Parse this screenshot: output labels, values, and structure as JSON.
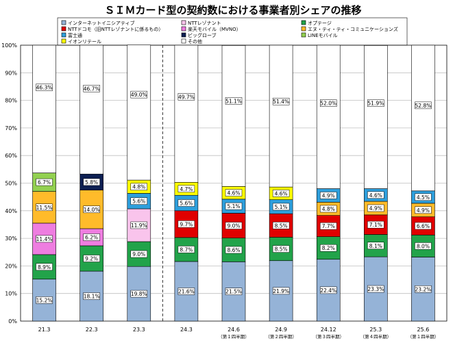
{
  "chart_data": {
    "type": "bar",
    "stacked": true,
    "title": "ＳＩＭカード型の契約数における事業者別シェアの推移",
    "xlabel": "",
    "ylabel": "",
    "ylim": [
      0,
      100
    ],
    "y_ticks": [
      "0%",
      "10%",
      "20%",
      "30%",
      "40%",
      "50%",
      "60%",
      "70%",
      "80%",
      "90%",
      "100%"
    ],
    "grid": true,
    "legend_position": "top",
    "categories": [
      {
        "label": "21.3",
        "sub": ""
      },
      {
        "label": "22.3",
        "sub": ""
      },
      {
        "label": "23.3",
        "sub": ""
      },
      {
        "label": "24.3",
        "sub": ""
      },
      {
        "label": "24.6",
        "sub": "（第１四半期）"
      },
      {
        "label": "24.9",
        "sub": "（第２四半期）"
      },
      {
        "label": "24.12",
        "sub": "（第３四半期）"
      },
      {
        "label": "25.3",
        "sub": "（第４四半期）"
      },
      {
        "label": "25.6",
        "sub": "（第１四半期）"
      }
    ],
    "series": [
      {
        "name": "インターネットイニシアティブ",
        "color": "#95b3d7",
        "values": [
          15.2,
          18.1,
          19.8,
          21.6,
          21.5,
          21.9,
          22.4,
          23.3,
          23.2
        ],
        "labels": [
          "15.2%",
          "18.1%",
          "19.8%",
          "21.6%",
          "21.5%",
          "21.9%",
          "22.4%",
          "23.3%",
          "23.2%"
        ]
      },
      {
        "name": "オプテージ",
        "color": "#22a34a",
        "values": [
          8.9,
          9.2,
          9.0,
          8.7,
          8.6,
          8.5,
          8.2,
          8.1,
          8.0
        ],
        "labels": [
          "8.9%",
          "9.2%",
          "9.0%",
          "8.7%",
          "8.6%",
          "8.5%",
          "8.2%",
          "8.1%",
          "8.0%"
        ]
      },
      {
        "name": "NTTレゾナント",
        "color": "#f9c4ec",
        "values": [
          0,
          0,
          11.9,
          0,
          0,
          0,
          0,
          0,
          0
        ],
        "labels": [
          "",
          "",
          "11.9%",
          "",
          "",
          "",
          "",
          "",
          ""
        ]
      },
      {
        "name": "楽天モバイル（MVNO）",
        "color": "#ee7de0",
        "values": [
          11.4,
          6.2,
          0,
          0,
          0,
          0,
          0,
          0,
          0
        ],
        "labels": [
          "11.4%",
          "6.2%",
          "",
          "",
          "",
          "",
          "",
          "",
          ""
        ]
      },
      {
        "name": "NTTドコモ（旧NTTレゾナントに係るもの）",
        "color": "#e00000",
        "values": [
          0,
          0,
          0,
          9.7,
          9.0,
          8.5,
          7.7,
          7.1,
          6.6
        ],
        "labels": [
          "",
          "",
          "",
          "9.7%",
          "9.0%",
          "8.5%",
          "7.7%",
          "7.1%",
          "6.6%"
        ]
      },
      {
        "name": "エヌ・ティ・ティ・コミュニケーションズ",
        "color": "#ffbb2a",
        "values": [
          11.5,
          14.0,
          0,
          0,
          0,
          0,
          4.8,
          4.9,
          4.9
        ],
        "labels": [
          "11.5%",
          "14.0%",
          "",
          "",
          "",
          "",
          "4.8%",
          "4.9%",
          "4.9%"
        ]
      },
      {
        "name": "富士通",
        "color": "#2e9fdc",
        "values": [
          0,
          0,
          5.6,
          5.6,
          5.1,
          5.1,
          4.9,
          4.6,
          4.5
        ],
        "labels": [
          "",
          "",
          "5.6%",
          "5.6%",
          "5.1%",
          "5.1%",
          "4.9%",
          "4.6%",
          "4.5%"
        ]
      },
      {
        "name": "ビッグローブ",
        "color": "#0c1f52",
        "values": [
          0,
          5.8,
          0,
          0,
          0,
          0,
          0,
          0,
          0
        ],
        "labels": [
          "",
          "5.8%",
          "",
          "",
          "",
          "",
          "",
          "",
          ""
        ]
      },
      {
        "name": "LINEモバイル",
        "color": "#92d050",
        "values": [
          6.7,
          0,
          0,
          0,
          0,
          0,
          0,
          0,
          0
        ],
        "labels": [
          "6.7%",
          "",
          "",
          "",
          "",
          "",
          "",
          "",
          ""
        ]
      },
      {
        "name": "イオンリテール",
        "color": "#ffff00",
        "values": [
          0,
          0,
          4.8,
          4.7,
          4.6,
          4.6,
          0,
          0,
          0
        ],
        "labels": [
          "",
          "",
          "4.8%",
          "4.7%",
          "4.6%",
          "4.6%",
          "",
          "",
          ""
        ]
      },
      {
        "name": "その他",
        "color": "#ffffff",
        "values": [
          46.3,
          46.7,
          49.0,
          49.7,
          51.1,
          51.4,
          52.0,
          51.9,
          52.8
        ],
        "labels": [
          "46.3%",
          "46.7%",
          "49.0%",
          "49.7%",
          "51.1%",
          "51.4%",
          "52.0%",
          "51.9%",
          "52.8%"
        ]
      }
    ],
    "legend": [
      {
        "name": "インターネットイニシアティブ",
        "color": "#95b3d7"
      },
      {
        "name": "NTTレゾナント",
        "color": "#f9c4ec"
      },
      {
        "name": "オプテージ",
        "color": "#22a34a"
      },
      {
        "name": "NTTドコモ（旧NTTレゾナントに係るもの）",
        "color": "#e00000"
      },
      {
        "name": "楽天モバイル（MVNO）",
        "color": "#ee7de0"
      },
      {
        "name": "エヌ・ティ・ティ・コミュニケーションズ",
        "color": "#ffbb2a"
      },
      {
        "name": "富士通",
        "color": "#2e9fdc"
      },
      {
        "name": "ビッグローブ",
        "color": "#0c1f52"
      },
      {
        "name": "LINEモバイル",
        "color": "#92d050"
      },
      {
        "name": "イオンリテール",
        "color": "#ffff00"
      },
      {
        "name": "その他",
        "color": "#ffffff"
      }
    ]
  }
}
